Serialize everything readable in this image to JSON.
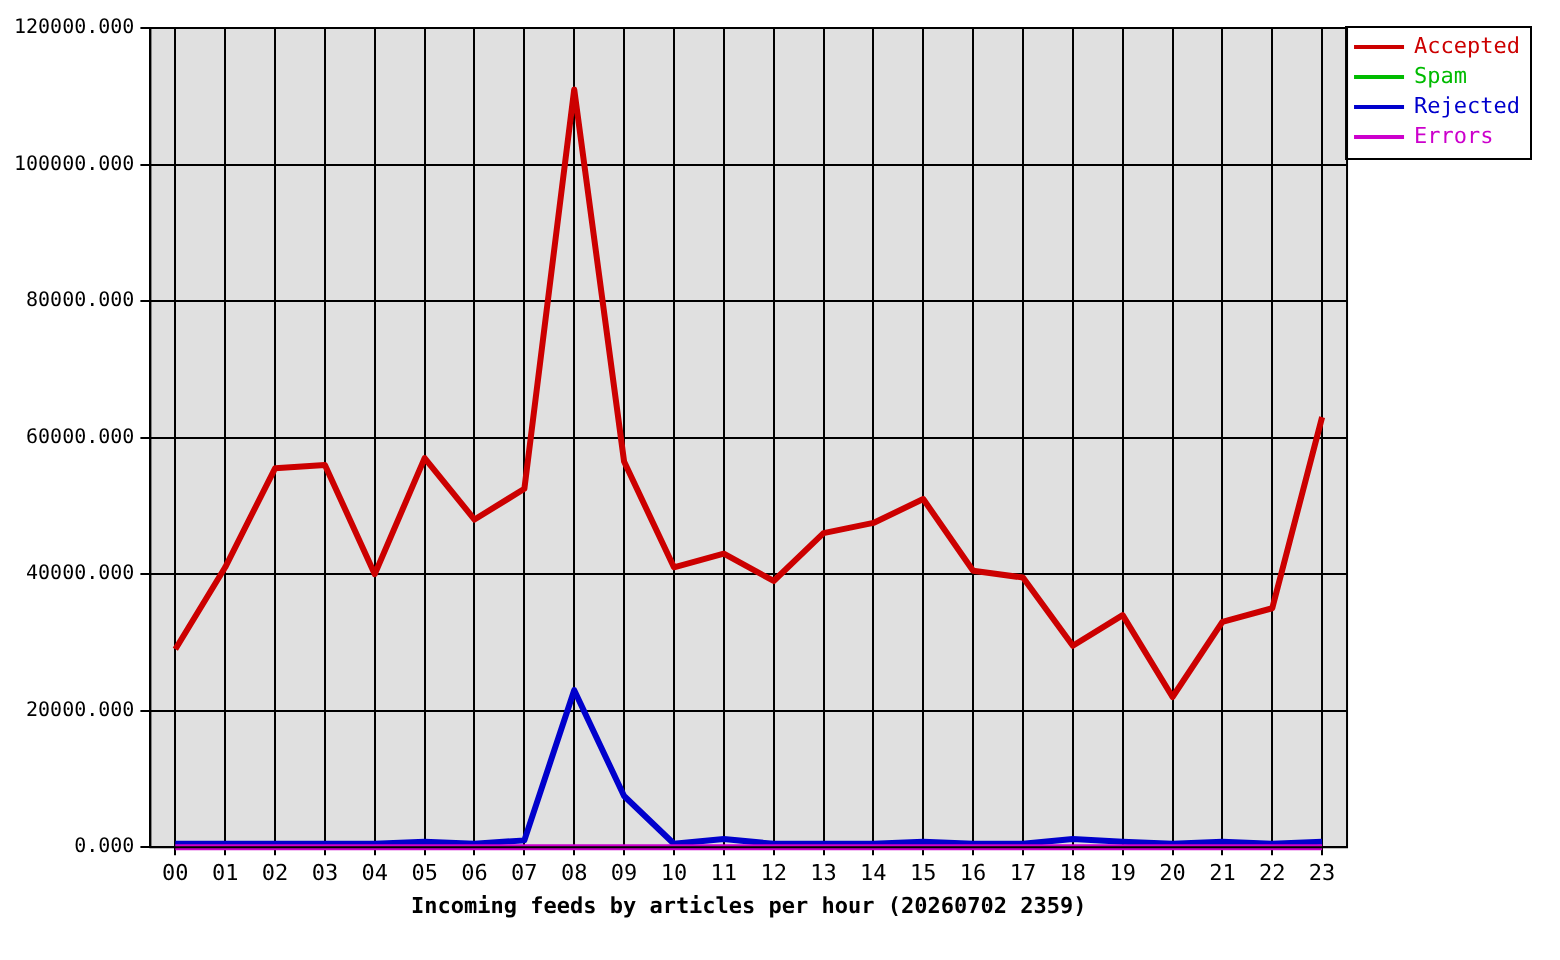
{
  "chart_data": {
    "type": "line",
    "xlabel": "Incoming feeds by articles per hour (20260702 2359)",
    "categories": [
      "00",
      "01",
      "02",
      "03",
      "04",
      "05",
      "06",
      "07",
      "08",
      "09",
      "10",
      "11",
      "12",
      "13",
      "14",
      "15",
      "16",
      "17",
      "18",
      "19",
      "20",
      "21",
      "22",
      "23"
    ],
    "series": [
      {
        "name": "Accepted",
        "color": "#cc0000",
        "values": [
          29000,
          41000,
          55500,
          56000,
          40000,
          57000,
          48000,
          52500,
          111000,
          56500,
          41000,
          43000,
          39000,
          46000,
          47500,
          51000,
          40500,
          39500,
          29500,
          34000,
          22000,
          33000,
          35000,
          63000
        ]
      },
      {
        "name": "Spam",
        "color": "#00bb00",
        "values": [
          null,
          null,
          null,
          null,
          null,
          null,
          null,
          null,
          null,
          null,
          null,
          null,
          null,
          null,
          null,
          null,
          null,
          null,
          null,
          null,
          null,
          null,
          null,
          null
        ]
      },
      {
        "name": "Rejected",
        "color": "#0000cc",
        "values": [
          500,
          500,
          500,
          500,
          500,
          800,
          500,
          1000,
          23000,
          7500,
          500,
          1200,
          500,
          500,
          500,
          800,
          500,
          500,
          1200,
          800,
          500,
          800,
          500,
          800
        ]
      },
      {
        "name": "Errors",
        "color": "#cc00cc",
        "values": [
          0,
          0,
          0,
          0,
          0,
          0,
          0,
          0,
          0,
          0,
          0,
          0,
          0,
          0,
          0,
          0,
          0,
          0,
          0,
          0,
          0,
          0,
          0,
          0
        ]
      }
    ],
    "ylim": [
      0,
      120000
    ],
    "yticks": [
      {
        "value": 0,
        "label": "0.000"
      },
      {
        "value": 20000,
        "label": "20000.000"
      },
      {
        "value": 40000,
        "label": "40000.000"
      },
      {
        "value": 60000,
        "label": "60000.000"
      },
      {
        "value": 80000,
        "label": "80000.000"
      },
      {
        "value": 100000,
        "label": "100000.000"
      },
      {
        "value": 120000,
        "label": "120000.000"
      }
    ],
    "grid": true,
    "legend": "top right",
    "marker": "none",
    "line_style": "solid"
  }
}
